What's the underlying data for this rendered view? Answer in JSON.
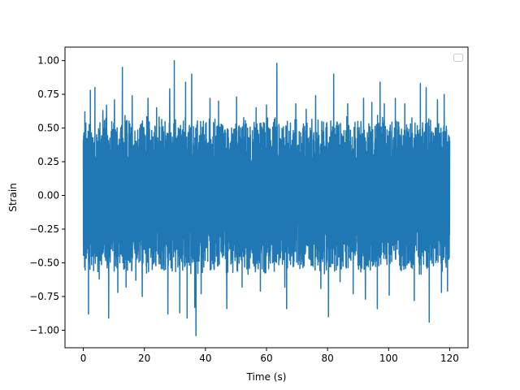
{
  "chart_data": {
    "type": "line",
    "title": "",
    "xlabel": "Time (s)",
    "ylabel": "Strain",
    "xlim": [
      -6,
      126
    ],
    "ylim": [
      -1.13,
      1.1
    ],
    "x_ticks": [
      0,
      20,
      40,
      60,
      80,
      100,
      120
    ],
    "x_tick_labels": [
      "0",
      "20",
      "40",
      "60",
      "80",
      "100",
      "120"
    ],
    "y_ticks": [
      -1.0,
      -0.75,
      -0.5,
      -0.25,
      0.0,
      0.25,
      0.5,
      0.75,
      1.0
    ],
    "y_tick_labels": [
      "−1.00",
      "−0.75",
      "−0.50",
      "−0.25",
      "0.00",
      "0.25",
      "0.50",
      "0.75",
      "1.00"
    ],
    "grid": false,
    "legend": {
      "placement": "upper right",
      "entries": []
    },
    "series": [
      {
        "color": "#1f77b4",
        "x_range": [
          0,
          120
        ],
        "band_upper_typical": 0.5,
        "band_lower_typical": -0.5,
        "spikes": [
          {
            "x": 0.5,
            "y": 0.62
          },
          {
            "x": 1.7,
            "y": -0.88
          },
          {
            "x": 2.3,
            "y": 0.78
          },
          {
            "x": 3.8,
            "y": 0.8
          },
          {
            "x": 5.2,
            "y": -0.62
          },
          {
            "x": 6.4,
            "y": 0.63
          },
          {
            "x": 7.6,
            "y": 0.67
          },
          {
            "x": 8.3,
            "y": -0.91
          },
          {
            "x": 10.2,
            "y": 0.71
          },
          {
            "x": 11.3,
            "y": -0.72
          },
          {
            "x": 12.8,
            "y": 0.95
          },
          {
            "x": 14.0,
            "y": -0.68
          },
          {
            "x": 16.0,
            "y": 0.74
          },
          {
            "x": 17.2,
            "y": -0.63
          },
          {
            "x": 19.3,
            "y": -0.75
          },
          {
            "x": 21.2,
            "y": 0.72
          },
          {
            "x": 24.0,
            "y": 0.65
          },
          {
            "x": 27.7,
            "y": -0.88
          },
          {
            "x": 28.3,
            "y": 0.79
          },
          {
            "x": 29.8,
            "y": 1.0
          },
          {
            "x": 31.6,
            "y": -0.87
          },
          {
            "x": 33.5,
            "y": 0.84
          },
          {
            "x": 34.0,
            "y": -0.91
          },
          {
            "x": 35.5,
            "y": 0.9
          },
          {
            "x": 36.5,
            "y": -0.83
          },
          {
            "x": 36.9,
            "y": -1.04
          },
          {
            "x": 38.6,
            "y": -0.73
          },
          {
            "x": 41.5,
            "y": 0.72
          },
          {
            "x": 44.3,
            "y": 0.7
          },
          {
            "x": 47.0,
            "y": -0.84
          },
          {
            "x": 50.2,
            "y": 0.73
          },
          {
            "x": 52.0,
            "y": -0.68
          },
          {
            "x": 56.6,
            "y": 0.65
          },
          {
            "x": 58.0,
            "y": -0.71
          },
          {
            "x": 60.0,
            "y": 0.67
          },
          {
            "x": 63.4,
            "y": 0.98
          },
          {
            "x": 66.0,
            "y": -0.68
          },
          {
            "x": 66.6,
            "y": -0.84
          },
          {
            "x": 69.6,
            "y": 0.68
          },
          {
            "x": 73.0,
            "y": 0.64
          },
          {
            "x": 76.1,
            "y": 0.74
          },
          {
            "x": 77.8,
            "y": -0.69
          },
          {
            "x": 80.3,
            "y": -0.9
          },
          {
            "x": 82.0,
            "y": 0.9
          },
          {
            "x": 84.1,
            "y": -0.64
          },
          {
            "x": 86.6,
            "y": 0.68
          },
          {
            "x": 88.4,
            "y": -0.73
          },
          {
            "x": 91.8,
            "y": 0.72
          },
          {
            "x": 92.4,
            "y": -0.77
          },
          {
            "x": 94.5,
            "y": 0.69
          },
          {
            "x": 96.3,
            "y": -0.84
          },
          {
            "x": 97.2,
            "y": 0.84
          },
          {
            "x": 98.6,
            "y": 0.68
          },
          {
            "x": 100.2,
            "y": -0.74
          },
          {
            "x": 102.2,
            "y": 0.72
          },
          {
            "x": 105.3,
            "y": 0.68
          },
          {
            "x": 108.4,
            "y": -0.78
          },
          {
            "x": 110.4,
            "y": 0.83
          },
          {
            "x": 112.3,
            "y": 0.8
          },
          {
            "x": 113.3,
            "y": -0.94
          },
          {
            "x": 116.0,
            "y": 0.71
          },
          {
            "x": 117.3,
            "y": -0.72
          },
          {
            "x": 118.2,
            "y": 0.75
          },
          {
            "x": 119.3,
            "y": -0.71
          }
        ]
      }
    ]
  }
}
